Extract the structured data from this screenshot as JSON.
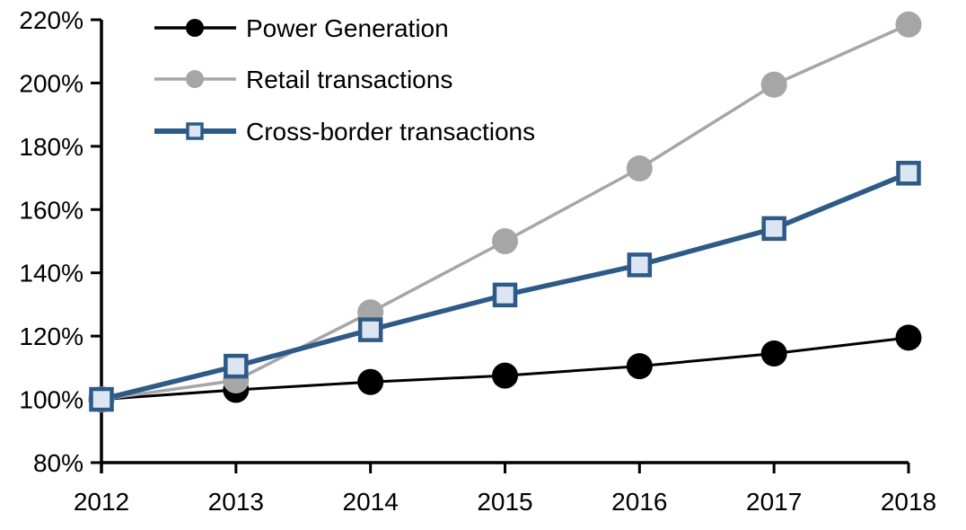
{
  "chart_data": {
    "type": "line",
    "title": "",
    "xlabel": "",
    "ylabel": "",
    "x_tick_labels": [
      "2012",
      "2013",
      "2014",
      "2015",
      "2016",
      "2017",
      "2018"
    ],
    "y_axis": {
      "min": 80,
      "max": 220,
      "step": 20,
      "tick_labels": [
        "80%",
        "100%",
        "120%",
        "140%",
        "160%",
        "180%",
        "200%",
        "220%"
      ]
    },
    "grid": false,
    "legend_position": "top-left",
    "background_color": "#FFFFFF",
    "axis_color": "#000000",
    "series": [
      {
        "name": "Power Generation",
        "color": "#000000",
        "marker": "circle",
        "marker_fill": "#000000",
        "line_width": 3,
        "values": [
          100,
          103,
          105.5,
          107.5,
          110.5,
          114.5,
          119.5
        ]
      },
      {
        "name": "Retail transactions",
        "color": "#A6A6A6",
        "marker": "circle",
        "marker_fill": "#A6A6A6",
        "line_width": 3.5,
        "values": [
          100,
          106,
          127.5,
          150,
          173,
          199.5,
          218.5
        ]
      },
      {
        "name": "Cross-border transactions",
        "color": "#2E5A87",
        "marker": "square",
        "marker_fill": "#DCE6F2",
        "line_width": 5.5,
        "values": [
          100,
          110.5,
          122,
          133,
          142.5,
          154,
          171.5
        ]
      }
    ]
  }
}
